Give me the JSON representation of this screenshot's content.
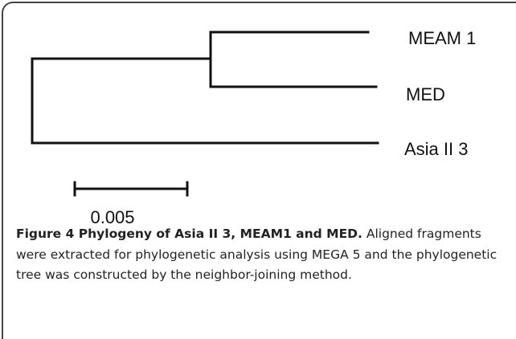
{
  "tree": {
    "leaves": [
      "MEAM 1",
      "MED",
      "Asia II 3"
    ],
    "scale_label": "0.005"
  },
  "caption": {
    "label": "Figure 4",
    "title": "Phylogeny of Asia II 3, MEAM1 and MED.",
    "text": "Aligned fragments were extracted for phylogenetic analysis using MEGA 5 and the phylogenetic tree was constructed by the neighbor-joining method."
  }
}
